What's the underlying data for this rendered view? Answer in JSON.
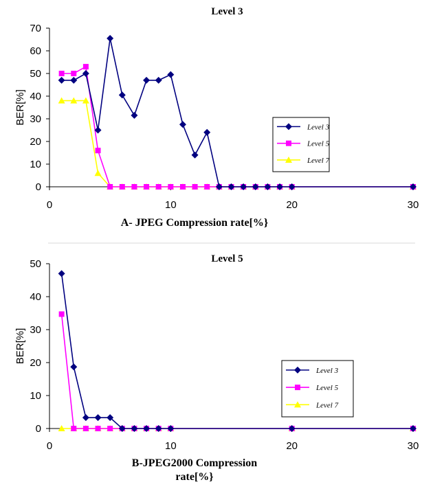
{
  "chart_data": [
    {
      "type": "line",
      "title": "Level 3",
      "xlabel": "A- JPEG Compression rate[%}",
      "ylabel": "BER[%]",
      "xlim": [
        0,
        30
      ],
      "ylim": [
        0,
        70
      ],
      "xticks": [
        0,
        10,
        20,
        30
      ],
      "yticks": [
        0,
        10,
        20,
        30,
        40,
        50,
        60,
        70
      ],
      "grid": false,
      "legend_position": "right",
      "series": [
        {
          "name": "Level 3",
          "color": "#000080",
          "marker": "diamond",
          "x": [
            1,
            2,
            3,
            4,
            5,
            6,
            7,
            8,
            9,
            10,
            11,
            12,
            13,
            14,
            15,
            16,
            17,
            18,
            19,
            20,
            30
          ],
          "y": [
            47,
            47,
            50,
            25,
            65.5,
            40.5,
            31.5,
            47,
            47,
            49.5,
            27.5,
            14,
            24,
            0,
            0,
            0,
            0,
            0,
            0,
            0,
            0
          ]
        },
        {
          "name": "Level 5",
          "color": "#ff00ff",
          "marker": "square",
          "x": [
            1,
            2,
            3,
            4,
            5,
            6,
            7,
            8,
            9,
            10,
            11,
            12,
            13,
            14,
            15,
            16,
            17,
            18,
            19,
            20,
            30
          ],
          "y": [
            50,
            50,
            53,
            16,
            0,
            0,
            0,
            0,
            0,
            0,
            0,
            0,
            0,
            0,
            0,
            0,
            0,
            0,
            0,
            0,
            0
          ]
        },
        {
          "name": "Level 7",
          "color": "#ffff00",
          "marker": "triangle",
          "x": [
            1,
            2,
            3,
            4,
            5,
            6,
            7,
            8,
            9,
            10,
            11,
            12,
            13,
            14,
            15,
            16,
            17,
            18,
            19,
            20,
            30
          ],
          "y": [
            38,
            38,
            38,
            6,
            0,
            0,
            0,
            0,
            0,
            0,
            0,
            0,
            0,
            0,
            0,
            0,
            0,
            0,
            0,
            0,
            0
          ]
        }
      ]
    },
    {
      "type": "line",
      "title": "Level 5",
      "xlabel": "B-JPEG2000 Compression rate[%}",
      "xlabel_lines": [
        "B-JPEG2000 Compression",
        "rate[%}"
      ],
      "ylabel": "BER[%]",
      "xlim": [
        0,
        30
      ],
      "ylim": [
        0,
        50
      ],
      "xticks": [
        0,
        10,
        20,
        30
      ],
      "yticks": [
        0,
        10,
        20,
        30,
        40,
        50
      ],
      "grid": false,
      "legend_position": "right",
      "series": [
        {
          "name": "Level 3",
          "color": "#000080",
          "marker": "diamond",
          "x": [
            1,
            2,
            3,
            4,
            5,
            6,
            7,
            8,
            9,
            10,
            20,
            30
          ],
          "y": [
            47,
            18.7,
            3.3,
            3.3,
            3.3,
            0,
            0,
            0,
            0,
            0,
            0,
            0
          ]
        },
        {
          "name": "Level 5",
          "color": "#ff00ff",
          "marker": "square",
          "x": [
            1,
            2,
            3,
            4,
            5,
            6,
            7,
            8,
            9,
            10,
            20,
            30
          ],
          "y": [
            34.7,
            0,
            0,
            0,
            0,
            0,
            0,
            0,
            0,
            0,
            0,
            0
          ]
        },
        {
          "name": "Level 7",
          "color": "#ffff00",
          "marker": "triangle",
          "x": [
            1,
            2,
            3,
            4,
            5,
            6,
            7,
            8,
            9,
            10,
            20,
            30
          ],
          "y": [
            0,
            0,
            0,
            0,
            0,
            0,
            0,
            0,
            0,
            0,
            0,
            0
          ]
        }
      ]
    }
  ]
}
